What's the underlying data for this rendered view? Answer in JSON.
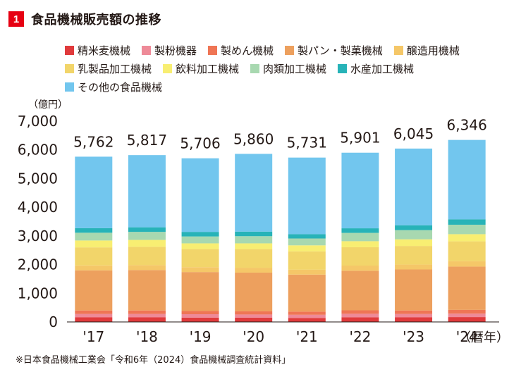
{
  "header": {
    "number": "1",
    "title": "食品機械販売額の推移"
  },
  "unit": "（億円）",
  "source": "※日本食品機械工業会「令和6年（2024）食品機械調査統計資料」",
  "x_suffix": "（暦年）",
  "chart_data": {
    "type": "bar",
    "stacked": true,
    "title": "食品機械販売額の推移",
    "ylabel": "（億円）",
    "ylim": [
      0,
      7000
    ],
    "yticks": [
      "0",
      "1,000",
      "2,000",
      "3,000",
      "4,000",
      "5,000",
      "6,000",
      "7,000"
    ],
    "categories": [
      "'17",
      "'18",
      "'19",
      "'20",
      "'21",
      "'22",
      "'23",
      "'24"
    ],
    "totals": [
      5762,
      5817,
      5706,
      5860,
      5731,
      5901,
      6045,
      6346
    ],
    "total_labels": [
      "5,762",
      "5,817",
      "5,706",
      "5,860",
      "5,731",
      "5,901",
      "6,045",
      "6,346"
    ],
    "legend_placement": "top",
    "series": [
      {
        "name": "精米麦機械",
        "color": "#e03a3c",
        "values": [
          160,
          160,
          150,
          150,
          140,
          165,
          160,
          170
        ]
      },
      {
        "name": "製粉機器",
        "color": "#ee8a98",
        "values": [
          120,
          120,
          120,
          110,
          110,
          120,
          120,
          120
        ]
      },
      {
        "name": "製めん機械",
        "color": "#ef7555",
        "values": [
          120,
          120,
          110,
          110,
          110,
          120,
          120,
          130
        ]
      },
      {
        "name": "製パン・製菓機械",
        "color": "#eda05e",
        "values": [
          1400,
          1410,
          1360,
          1350,
          1290,
          1380,
          1430,
          1510
        ]
      },
      {
        "name": "醸造用機械",
        "color": "#f5c768",
        "values": [
          170,
          170,
          170,
          170,
          170,
          180,
          170,
          190
        ]
      },
      {
        "name": "乳製品加工機械",
        "color": "#f2d56a",
        "values": [
          630,
          640,
          630,
          650,
          640,
          640,
          650,
          690
        ]
      },
      {
        "name": "飲料加工機械",
        "color": "#f8ee72",
        "values": [
          240,
          240,
          200,
          200,
          210,
          210,
          230,
          250
        ]
      },
      {
        "name": "肉類加工機械",
        "color": "#a8d8b0",
        "values": [
          270,
          280,
          240,
          250,
          240,
          290,
          320,
          330
        ]
      },
      {
        "name": "水産加工機械",
        "color": "#27b3b8",
        "values": [
          160,
          160,
          160,
          160,
          150,
          160,
          170,
          190
        ]
      },
      {
        "name": "その他の食品機械",
        "color": "#72c6ee",
        "values": [
          2492,
          2517,
          2566,
          2710,
          2671,
          2636,
          2675,
          2766
        ]
      }
    ]
  }
}
